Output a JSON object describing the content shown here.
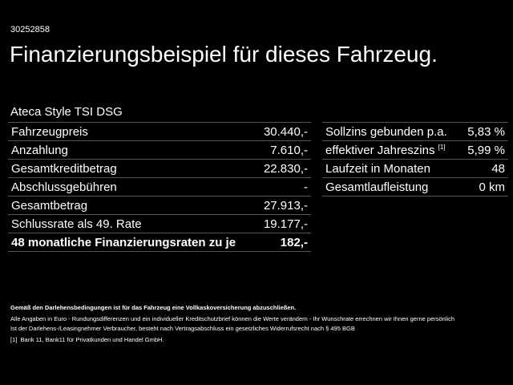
{
  "id": "30252858",
  "title": "Finanzierungsbeispiel für dieses Fahrzeug.",
  "model": "Ateca Style TSI DSG",
  "left_rows": [
    {
      "label": "Fahrzeugpreis",
      "value": "30.440,-"
    },
    {
      "label": "Anzahlung",
      "value": "7.610,-"
    },
    {
      "label": "Gesamtkreditbetrag",
      "value": "22.830,-"
    },
    {
      "label": "Abschlussgebühren",
      "value": "-"
    },
    {
      "label": "Gesamtbetrag",
      "value": "27.913,-"
    },
    {
      "label": "Schlussrate als 49. Rate",
      "value": "19.177,-"
    },
    {
      "label": "48 monatliche Finanzierungsraten zu je",
      "value": "182,-"
    }
  ],
  "right_rows": [
    {
      "label": "Sollzins gebunden p.a.",
      "value": "5,83 %"
    },
    {
      "label": "effektiver Jahreszins",
      "sup": "[1]",
      "value": "5,99 %"
    },
    {
      "label": "Laufzeit in Monaten",
      "value": "48"
    },
    {
      "label": "Gesamtlaufleistung",
      "value": "0 km"
    }
  ],
  "footer": {
    "insurance": "Gemäß den Darlehensbedingungen ist für das Fahrzeug eine Vollkaskoversicherung abzuschließen.",
    "line1": "Alle Angaben in Euro - Rundungsdifferenzen und ein individueller Kreditschutzbrief können die Werte verändern - Ihr Wunschrate errechnen wir Ihnen gerne persönlich",
    "line2": "Ist der Darlehens-/Leasingnehmer Verbraucher, besteht nach Vertragsabschluss ein gesetzliches Widerrufsrecht nach § 495 BGB",
    "note_mark": "[1]",
    "note": "Bank 11, Bank11 für Privatkunden und Handel GmbH."
  }
}
